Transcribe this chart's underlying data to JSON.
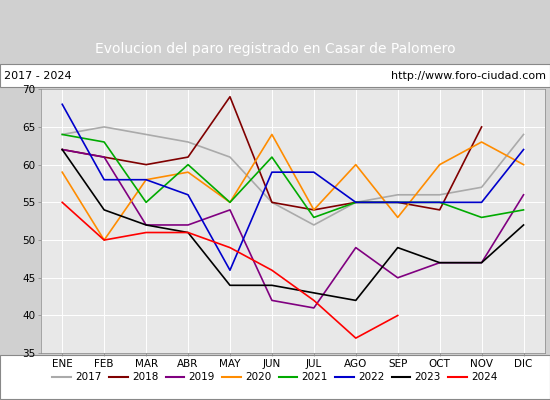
{
  "title": "Evolucion del paro registrado en Casar de Palomero",
  "subtitle_left": "2017 - 2024",
  "subtitle_right": "http://www.foro-ciudad.com",
  "x_labels": [
    "ENE",
    "FEB",
    "MAR",
    "ABR",
    "MAY",
    "JUN",
    "JUL",
    "AGO",
    "SEP",
    "OCT",
    "NOV",
    "DIC"
  ],
  "ylim": [
    35,
    70
  ],
  "yticks": [
    35,
    40,
    45,
    50,
    55,
    60,
    65,
    70
  ],
  "series": {
    "2017": {
      "color": "#aaaaaa",
      "values": [
        64,
        65,
        64,
        63,
        61,
        55,
        52,
        55,
        56,
        56,
        57,
        64
      ]
    },
    "2018": {
      "color": "#800000",
      "values": [
        62,
        61,
        60,
        61,
        69,
        55,
        54,
        55,
        55,
        54,
        65,
        null
      ]
    },
    "2019": {
      "color": "#800080",
      "values": [
        62,
        61,
        52,
        52,
        54,
        42,
        41,
        49,
        45,
        47,
        47,
        56
      ]
    },
    "2020": {
      "color": "#ff8c00",
      "values": [
        59,
        50,
        58,
        59,
        55,
        64,
        54,
        60,
        53,
        60,
        63,
        60
      ]
    },
    "2021": {
      "color": "#00aa00",
      "values": [
        64,
        63,
        55,
        60,
        55,
        61,
        53,
        55,
        55,
        55,
        53,
        54
      ]
    },
    "2022": {
      "color": "#0000cc",
      "values": [
        68,
        58,
        58,
        56,
        46,
        59,
        59,
        55,
        55,
        55,
        55,
        62
      ]
    },
    "2023": {
      "color": "#000000",
      "values": [
        62,
        54,
        52,
        51,
        44,
        44,
        43,
        42,
        49,
        47,
        47,
        52
      ]
    },
    "2024": {
      "color": "#ff0000",
      "values": [
        55,
        50,
        51,
        51,
        49,
        46,
        42,
        37,
        40,
        null,
        null,
        null
      ]
    }
  },
  "background_color": "#d0d0d0",
  "plot_bg_color": "#e8e8e8",
  "title_bg_color": "#4472c4",
  "title_color": "#ffffff",
  "title_fontsize": 10,
  "legend_fontsize": 7.5,
  "tick_fontsize": 7.5
}
